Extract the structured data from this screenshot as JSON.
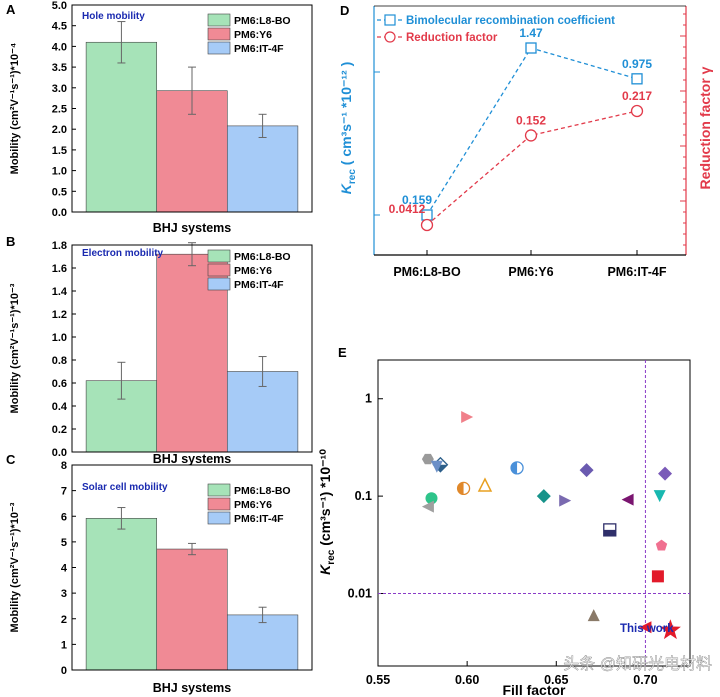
{
  "chart_data": [
    {
      "panel": "A",
      "type": "bar",
      "title": "Hole mobility",
      "xlabel": "BHJ systems",
      "ylabel": "Mobility (cm²V⁻¹s⁻¹)*10⁻⁴",
      "ylim": [
        0,
        5.0
      ],
      "yticks": [
        "0.0",
        "0.5",
        "1.0",
        "1.5",
        "2.0",
        "2.5",
        "3.0",
        "3.5",
        "4.0",
        "4.5",
        "5.0"
      ],
      "categories": [
        "PM6:L8-BO",
        "PM6:Y6",
        "PM6:IT-4F"
      ],
      "values": [
        4.1,
        2.93,
        2.08
      ],
      "errors": [
        0.5,
        0.57,
        0.28
      ],
      "colors": [
        "#a6e3b8",
        "#f08a95",
        "#a6cbf7"
      ],
      "legend": [
        "PM6:L8-BO",
        "PM6:Y6",
        "PM6:IT-4F"
      ]
    },
    {
      "panel": "B",
      "type": "bar",
      "title": "Electron mobility",
      "xlabel": "BHJ systems",
      "ylabel": "Mobility (cm²V⁻¹s⁻¹)*10⁻³",
      "ylim": [
        0,
        1.8
      ],
      "yticks": [
        "0.0",
        "0.2",
        "0.4",
        "0.6",
        "0.8",
        "1.0",
        "1.2",
        "1.4",
        "1.6",
        "1.8"
      ],
      "categories": [
        "PM6:L8-BO",
        "PM6:Y6",
        "PM6:IT-4F"
      ],
      "values": [
        0.62,
        1.72,
        0.7
      ],
      "errors": [
        0.16,
        0.1,
        0.13
      ],
      "colors": [
        "#a6e3b8",
        "#f08a95",
        "#a6cbf7"
      ],
      "legend": [
        "PM6:L8-BO",
        "PM6:Y6",
        "PM6:IT-4F"
      ]
    },
    {
      "panel": "C",
      "type": "bar",
      "title": "Solar cell mobility",
      "xlabel": "BHJ systems",
      "ylabel": "Mobility (cm²V⁻¹s⁻¹)*10⁻³",
      "ylim": [
        0,
        8
      ],
      "yticks": [
        "0",
        "1",
        "2",
        "3",
        "4",
        "5",
        "6",
        "7",
        "8"
      ],
      "categories": [
        "PM6:L8-BO",
        "PM6:Y6",
        "PM6:IT-4F"
      ],
      "values": [
        5.92,
        4.72,
        2.15
      ],
      "errors": [
        0.42,
        0.22,
        0.3
      ],
      "colors": [
        "#a6e3b8",
        "#f08a95",
        "#a6cbf7"
      ],
      "legend": [
        "PM6:L8-BO",
        "PM6:Y6",
        "PM6:IT-4F"
      ]
    },
    {
      "panel": "D",
      "type": "line",
      "categories": [
        "PM6:L8-BO",
        "PM6:Y6",
        "PM6:IT-4F"
      ],
      "left_label_main": "K",
      "left_label_sub": "rec",
      "left_label_rest": " ( cm³s⁻¹ *10⁻¹² )",
      "right_label": "Reduction factor γ",
      "series": [
        {
          "name": "Bimolecular recombination coefficient",
          "values": [
            0.159,
            1.47,
            0.975
          ],
          "labels": [
            "0.159",
            "1.47",
            "0.975"
          ],
          "color": "#1f8fd6",
          "marker": "square"
        },
        {
          "name": "Reduction factor",
          "values": [
            0.0412,
            0.152,
            0.217
          ],
          "labels": [
            "0.0412",
            "0.152",
            "0.217"
          ],
          "color": "#e23a4a",
          "marker": "circle"
        }
      ]
    },
    {
      "panel": "E",
      "type": "scatter",
      "xlabel": "Fill factor",
      "ylabel_main": "K",
      "ylabel_sub": "rec",
      "ylabel_rest": " (cm³s⁻¹) *10⁻¹⁰",
      "xlim": [
        0.55,
        0.725
      ],
      "ylim_log": [
        0.0018,
        2.5
      ],
      "xticks": [
        "0.55",
        "0.60",
        "0.65",
        "0.70"
      ],
      "yticks": [
        "0.01",
        "0.1",
        "1"
      ],
      "threshold_x": 0.7,
      "threshold_y": 0.01,
      "annotation": "This work",
      "points": [
        {
          "x": 0.6,
          "y": 0.65,
          "shape": "tri-right",
          "color": "#f0808a"
        },
        {
          "x": 0.578,
          "y": 0.24,
          "shape": "hexagon",
          "color": "#9a9a9a"
        },
        {
          "x": 0.585,
          "y": 0.21,
          "shape": "diamond-half",
          "color": "#2d5f8a"
        },
        {
          "x": 0.583,
          "y": 0.2,
          "shape": "tri-down",
          "color": "#6b8fc7"
        },
        {
          "x": 0.58,
          "y": 0.095,
          "shape": "circle",
          "color": "#2ec48a"
        },
        {
          "x": 0.578,
          "y": 0.078,
          "shape": "tri-left",
          "color": "#a0a0a0"
        },
        {
          "x": 0.598,
          "y": 0.12,
          "shape": "circle-half",
          "color": "#e0882a"
        },
        {
          "x": 0.61,
          "y": 0.13,
          "shape": "tri-up-open",
          "color": "#e8a020"
        },
        {
          "x": 0.628,
          "y": 0.195,
          "shape": "circle-half",
          "color": "#4a90d9"
        },
        {
          "x": 0.643,
          "y": 0.1,
          "shape": "diamond",
          "color": "#17938a"
        },
        {
          "x": 0.655,
          "y": 0.09,
          "shape": "tri-right",
          "color": "#7a6ab0"
        },
        {
          "x": 0.667,
          "y": 0.185,
          "shape": "diamond",
          "color": "#6a5ab0"
        },
        {
          "x": 0.68,
          "y": 0.045,
          "shape": "square-half",
          "color": "#2f2f6a"
        },
        {
          "x": 0.69,
          "y": 0.092,
          "shape": "tri-left",
          "color": "#7a1570"
        },
        {
          "x": 0.708,
          "y": 0.1,
          "shape": "tri-down",
          "color": "#18b8b0"
        },
        {
          "x": 0.711,
          "y": 0.17,
          "shape": "diamond",
          "color": "#7a5ab8"
        },
        {
          "x": 0.709,
          "y": 0.031,
          "shape": "pentagon",
          "color": "#f07090"
        },
        {
          "x": 0.671,
          "y": 0.006,
          "shape": "tri-up",
          "color": "#8a7a68"
        },
        {
          "x": 0.707,
          "y": 0.015,
          "shape": "square",
          "color": "#e21a2a"
        },
        {
          "x": 0.7,
          "y": 0.0045,
          "shape": "tri-left",
          "color": "#e21a2a"
        },
        {
          "x": 0.714,
          "y": 0.0042,
          "shape": "star",
          "color": "#e21a2a"
        }
      ]
    }
  ],
  "panel_letters": [
    "A",
    "B",
    "C",
    "D",
    "E"
  ],
  "watermark": "头条 @知研光电材料"
}
